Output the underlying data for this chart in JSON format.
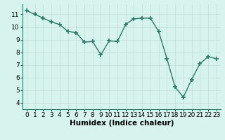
{
  "x": [
    0,
    1,
    2,
    3,
    4,
    5,
    6,
    7,
    8,
    9,
    10,
    11,
    12,
    13,
    14,
    15,
    16,
    17,
    18,
    19,
    20,
    21,
    22,
    23
  ],
  "y": [
    11.3,
    11.0,
    10.7,
    10.4,
    10.2,
    9.65,
    9.55,
    8.8,
    8.85,
    7.8,
    8.9,
    8.85,
    10.2,
    10.65,
    10.7,
    10.7,
    9.65,
    7.5,
    5.25,
    4.45,
    5.85,
    7.1,
    7.65,
    7.5
  ],
  "line_color": "#2a7a6a",
  "marker": "+",
  "marker_size": 4,
  "bg_color": "#d6f3ee",
  "grid_color": "#c0ddd8",
  "xlabel": "Humidex (Indice chaleur)",
  "xlim": [
    -0.5,
    23.5
  ],
  "ylim": [
    3.5,
    11.8
  ],
  "yticks": [
    4,
    5,
    6,
    7,
    8,
    9,
    10,
    11
  ],
  "xticks": [
    0,
    1,
    2,
    3,
    4,
    5,
    6,
    7,
    8,
    9,
    10,
    11,
    12,
    13,
    14,
    15,
    16,
    17,
    18,
    19,
    20,
    21,
    22,
    23
  ],
  "tick_fontsize": 6.5,
  "xlabel_fontsize": 7.5,
  "line_width": 1.0
}
